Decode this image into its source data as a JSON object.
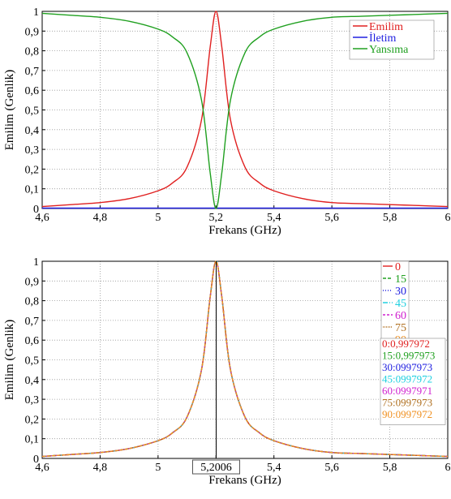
{
  "chart_data": [
    {
      "type": "line",
      "xlabel": "Frekans (GHz)",
      "ylabel": "Emilim (Genlik)",
      "xlim": [
        4.6,
        6.0
      ],
      "ylim": [
        0,
        1
      ],
      "xticks": [
        4.6,
        4.8,
        5.0,
        5.2,
        5.4,
        5.6,
        5.8,
        6.0
      ],
      "xtick_labels": [
        "4,6",
        "4,8",
        "5",
        "5,2",
        "5,4",
        "5,6",
        "5,8",
        "6"
      ],
      "yticks": [
        0,
        0.1,
        0.2,
        0.3,
        0.4,
        0.5,
        0.6,
        0.7,
        0.8,
        0.9,
        1
      ],
      "ytick_labels": [
        "0",
        "0,1",
        "0,2",
        "0,3",
        "0,4",
        "0,5",
        "0,6",
        "0,7",
        "0,8",
        "0,9",
        "1"
      ],
      "grid": true,
      "legend_position": "top-right",
      "x": [
        4.6,
        4.7,
        4.8,
        4.9,
        5.0,
        5.05,
        5.1,
        5.15,
        5.18,
        5.2,
        5.22,
        5.25,
        5.3,
        5.35,
        5.4,
        5.5,
        5.6,
        5.7,
        5.8,
        5.9,
        6.0
      ],
      "series": [
        {
          "name": "Emilim",
          "color": "#e02020",
          "values": [
            0.01,
            0.02,
            0.03,
            0.05,
            0.09,
            0.13,
            0.21,
            0.45,
            0.82,
            1.0,
            0.82,
            0.45,
            0.21,
            0.13,
            0.09,
            0.05,
            0.03,
            0.025,
            0.02,
            0.015,
            0.01
          ]
        },
        {
          "name": "İletim",
          "color": "#2020e0",
          "values": [
            0.002,
            0.002,
            0.002,
            0.002,
            0.002,
            0.002,
            0.002,
            0.002,
            0.002,
            0.002,
            0.002,
            0.002,
            0.002,
            0.002,
            0.002,
            0.002,
            0.002,
            0.002,
            0.002,
            0.002,
            0.002
          ]
        },
        {
          "name": "Yansıma",
          "color": "#20a020",
          "values": [
            0.99,
            0.98,
            0.97,
            0.95,
            0.91,
            0.87,
            0.79,
            0.55,
            0.18,
            0.0,
            0.18,
            0.55,
            0.79,
            0.87,
            0.91,
            0.95,
            0.97,
            0.975,
            0.98,
            0.985,
            0.99
          ]
        }
      ]
    },
    {
      "type": "line",
      "xlabel": "Frekans (GHz)",
      "ylabel": "Emilim (Genlik)",
      "xlim": [
        4.6,
        6.0
      ],
      "ylim": [
        0,
        1
      ],
      "xticks": [
        4.6,
        4.8,
        5.0,
        5.2,
        5.4,
        5.6,
        5.8,
        6.0
      ],
      "xtick_labels": [
        "4,6",
        "4,8",
        "5",
        "5,2",
        "5,4",
        "5,6",
        "5,8",
        "6"
      ],
      "yticks": [
        0,
        0.1,
        0.2,
        0.3,
        0.4,
        0.5,
        0.6,
        0.7,
        0.8,
        0.9,
        1
      ],
      "ytick_labels": [
        "0",
        "0,1",
        "0,2",
        "0,3",
        "0,4",
        "0,5",
        "0,6",
        "0,7",
        "0,8",
        "0,9",
        "1"
      ],
      "grid": true,
      "legend_position": "top-right",
      "marker_x": 5.2006,
      "marker_label": "5,2006",
      "x": [
        4.6,
        4.7,
        4.8,
        4.9,
        5.0,
        5.05,
        5.1,
        5.15,
        5.18,
        5.2,
        5.22,
        5.25,
        5.3,
        5.35,
        5.4,
        5.5,
        5.6,
        5.7,
        5.8,
        5.9,
        6.0
      ],
      "series": [
        {
          "name": "0",
          "color": "#e02020",
          "dash": "",
          "values": [
            0.01,
            0.02,
            0.03,
            0.05,
            0.09,
            0.13,
            0.21,
            0.45,
            0.82,
            1.0,
            0.82,
            0.45,
            0.21,
            0.13,
            0.09,
            0.05,
            0.03,
            0.025,
            0.02,
            0.015,
            0.01
          ]
        },
        {
          "name": "15",
          "color": "#20a020",
          "dash": "4,2",
          "values": [
            0.01,
            0.02,
            0.03,
            0.05,
            0.09,
            0.13,
            0.21,
            0.45,
            0.82,
            1.0,
            0.82,
            0.45,
            0.21,
            0.13,
            0.09,
            0.05,
            0.03,
            0.025,
            0.02,
            0.015,
            0.01
          ]
        },
        {
          "name": "30",
          "color": "#2020e0",
          "dash": "1,2",
          "values": [
            0.01,
            0.02,
            0.03,
            0.05,
            0.09,
            0.13,
            0.21,
            0.45,
            0.82,
            1.0,
            0.82,
            0.45,
            0.21,
            0.13,
            0.09,
            0.05,
            0.03,
            0.025,
            0.02,
            0.015,
            0.01
          ]
        },
        {
          "name": "45",
          "color": "#20d0e0",
          "dash": "6,2,1,2",
          "values": [
            0.01,
            0.02,
            0.03,
            0.05,
            0.09,
            0.13,
            0.21,
            0.45,
            0.82,
            1.0,
            0.82,
            0.45,
            0.21,
            0.13,
            0.09,
            0.05,
            0.03,
            0.025,
            0.02,
            0.015,
            0.01
          ]
        },
        {
          "name": "60",
          "color": "#d020d0",
          "dash": "3,2",
          "values": [
            0.01,
            0.02,
            0.03,
            0.05,
            0.09,
            0.13,
            0.21,
            0.45,
            0.82,
            1.0,
            0.82,
            0.45,
            0.21,
            0.13,
            0.09,
            0.05,
            0.03,
            0.025,
            0.02,
            0.015,
            0.01
          ]
        },
        {
          "name": "75",
          "color": "#b07020",
          "dash": "1,1",
          "values": [
            0.01,
            0.02,
            0.03,
            0.05,
            0.09,
            0.13,
            0.21,
            0.45,
            0.82,
            1.0,
            0.82,
            0.45,
            0.21,
            0.13,
            0.09,
            0.05,
            0.03,
            0.025,
            0.02,
            0.015,
            0.01
          ]
        },
        {
          "name": "90",
          "color": "#f09020",
          "dash": "4,2",
          "values": [
            0.01,
            0.02,
            0.03,
            0.05,
            0.09,
            0.13,
            0.21,
            0.45,
            0.82,
            1.0,
            0.82,
            0.45,
            0.21,
            0.13,
            0.09,
            0.05,
            0.03,
            0.025,
            0.02,
            0.015,
            0.01
          ]
        }
      ],
      "annotations": [
        {
          "text": "0:0,997972",
          "color": "#e02020"
        },
        {
          "text": "15:0,997973",
          "color": "#20a020"
        },
        {
          "text": "30:0997973",
          "color": "#2020e0"
        },
        {
          "text": "45:0997972",
          "color": "#20d0e0"
        },
        {
          "text": "60:0997971",
          "color": "#d020d0"
        },
        {
          "text": "75:0997973",
          "color": "#b07020"
        },
        {
          "text": "90:0997972",
          "color": "#f09020"
        }
      ]
    }
  ]
}
